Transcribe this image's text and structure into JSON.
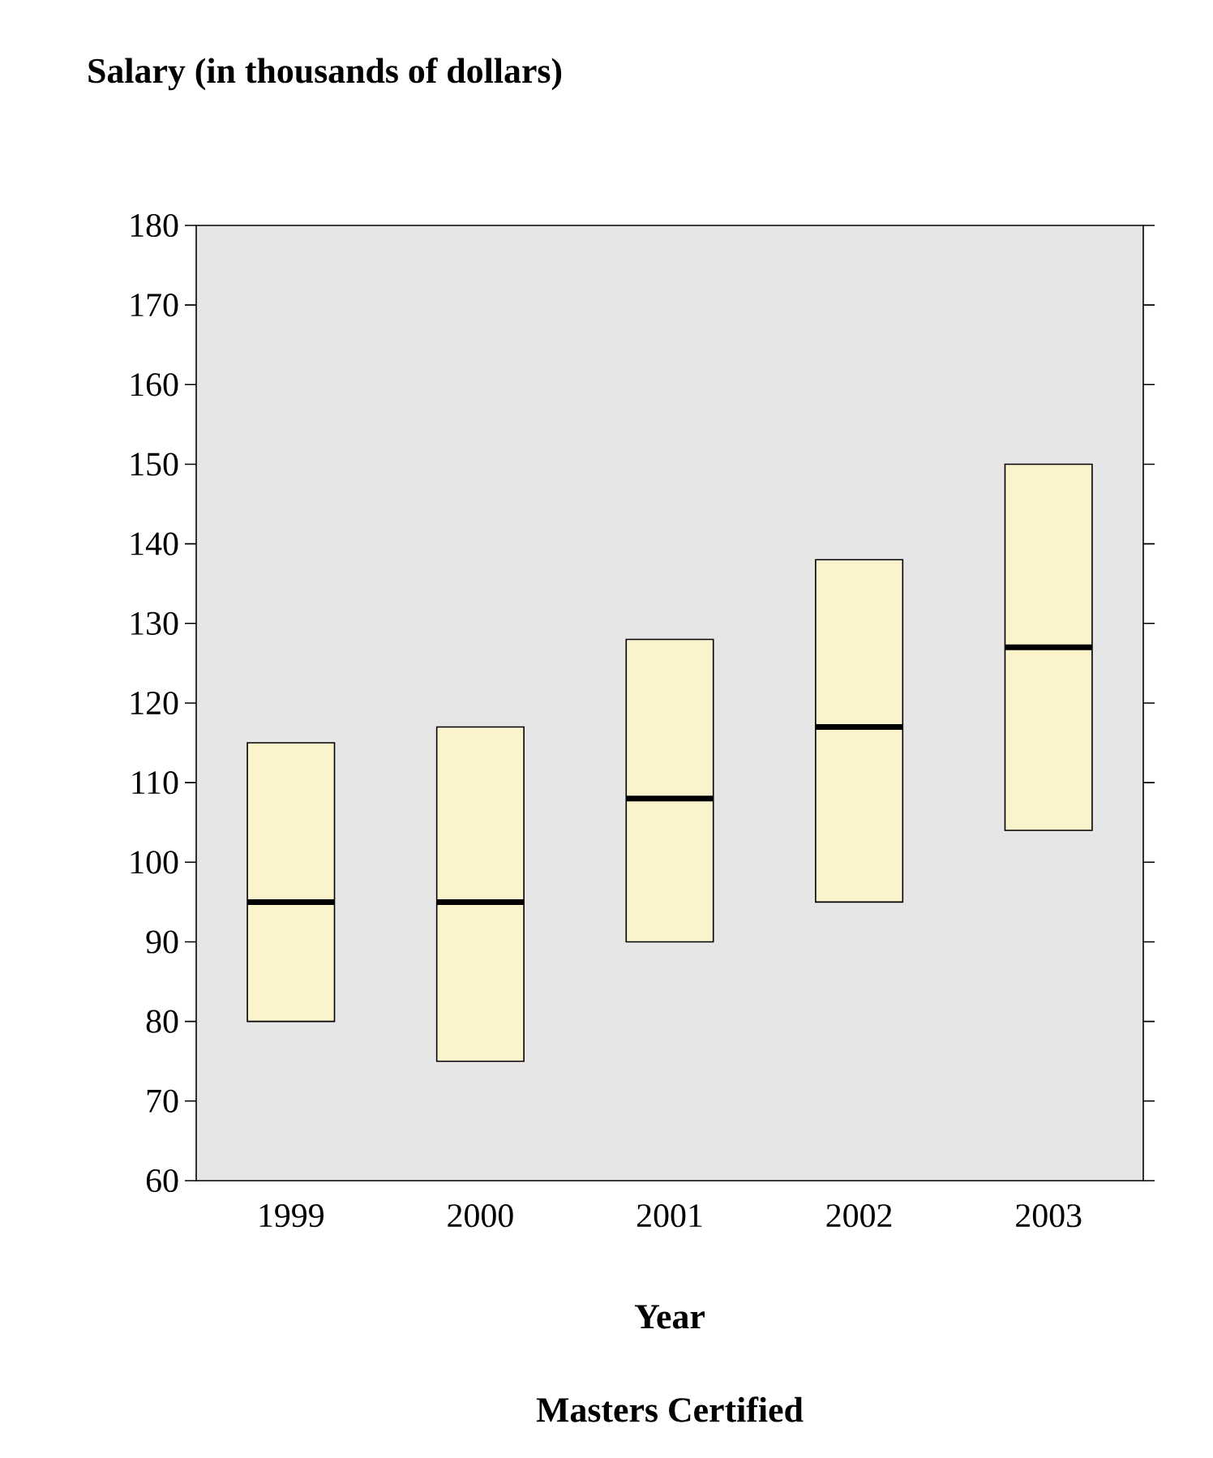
{
  "chart_data": {
    "type": "box",
    "ylabel": "Salary (in thousands of dollars)",
    "xlabel": "Year",
    "annotations": [
      "Masters Certified"
    ],
    "categories": [
      "1999",
      "2000",
      "2001",
      "2002",
      "2003"
    ],
    "boxes": [
      {
        "low": 80,
        "q1": 80,
        "median": 95,
        "q3": 115,
        "high": 115
      },
      {
        "low": 75,
        "q1": 75,
        "median": 95,
        "q3": 117,
        "high": 117
      },
      {
        "low": 90,
        "q1": 90,
        "median": 108,
        "q3": 128,
        "high": 128
      },
      {
        "low": 95,
        "q1": 95,
        "median": 117,
        "q3": 138,
        "high": 138
      },
      {
        "low": 104,
        "q1": 104,
        "median": 127,
        "q3": 150,
        "high": 150
      }
    ],
    "color": "#faf3cc",
    "ylim": [
      60,
      180
    ],
    "yticks": [
      60,
      70,
      80,
      90,
      100,
      110,
      120,
      130,
      140,
      150,
      160,
      170,
      180
    ],
    "grid": false
  }
}
